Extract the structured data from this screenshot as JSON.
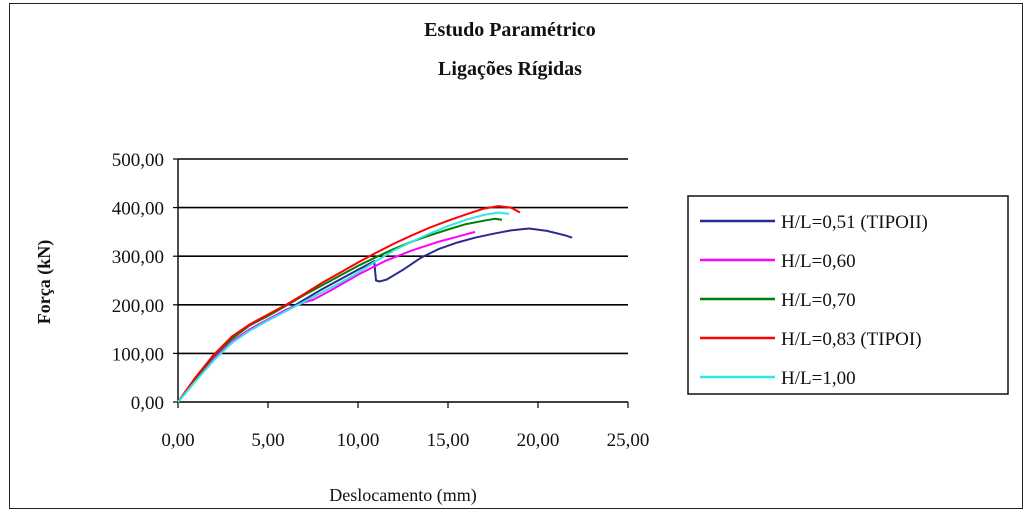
{
  "chart_data": {
    "type": "line",
    "title": "Estudo Paramétrico",
    "subtitle": "Ligações Rígidas",
    "xlabel": "Deslocamento (mm)",
    "ylabel": "Força (kN)",
    "xlim": [
      0,
      25
    ],
    "ylim": [
      0,
      500
    ],
    "x_ticks": [
      "0,00",
      "5,00",
      "10,00",
      "15,00",
      "20,00",
      "25,00"
    ],
    "y_ticks": [
      "0,00",
      "100,00",
      "200,00",
      "300,00",
      "400,00",
      "500,00"
    ],
    "grid": "horizontal",
    "legend_position": "right",
    "series": [
      {
        "name": "H/L=0,51 (TIPOII)",
        "color": "#2b2b8f",
        "points": [
          [
            0,
            0
          ],
          [
            1,
            45
          ],
          [
            2,
            88
          ],
          [
            3,
            122
          ],
          [
            4,
            148
          ],
          [
            5,
            168
          ],
          [
            6,
            188
          ],
          [
            7,
            210
          ],
          [
            8,
            232
          ],
          [
            9,
            252
          ],
          [
            10,
            272
          ],
          [
            10.9,
            290
          ],
          [
            11,
            250
          ],
          [
            11.2,
            248
          ],
          [
            11.6,
            252
          ],
          [
            12.5,
            272
          ],
          [
            13.5,
            297
          ],
          [
            14.5,
            315
          ],
          [
            15.5,
            328
          ],
          [
            16.5,
            338
          ],
          [
            17.5,
            346
          ],
          [
            18.5,
            353
          ],
          [
            19.5,
            357
          ],
          [
            20.5,
            352
          ],
          [
            21.5,
            343
          ],
          [
            21.9,
            338
          ]
        ]
      },
      {
        "name": "H/L=0,60",
        "color": "#ff00ff",
        "points": [
          [
            0,
            0
          ],
          [
            1,
            46
          ],
          [
            2,
            90
          ],
          [
            3,
            125
          ],
          [
            4,
            150
          ],
          [
            5,
            170
          ],
          [
            6,
            190
          ],
          [
            7,
            205
          ],
          [
            7.5,
            210
          ],
          [
            8.5,
            230
          ],
          [
            10,
            262
          ],
          [
            11.5,
            290
          ],
          [
            13,
            312
          ],
          [
            14.5,
            330
          ],
          [
            15.5,
            340
          ],
          [
            16.5,
            350
          ]
        ]
      },
      {
        "name": "H/L=0,70",
        "color": "#008000",
        "points": [
          [
            0,
            0
          ],
          [
            1,
            50
          ],
          [
            2,
            95
          ],
          [
            3,
            130
          ],
          [
            4,
            158
          ],
          [
            5,
            177
          ],
          [
            6,
            198
          ],
          [
            7,
            220
          ],
          [
            8,
            240
          ],
          [
            9,
            260
          ],
          [
            10,
            280
          ],
          [
            11,
            298
          ],
          [
            12,
            315
          ],
          [
            13,
            330
          ],
          [
            14,
            343
          ],
          [
            15,
            355
          ],
          [
            16,
            366
          ],
          [
            17,
            373
          ],
          [
            17.6,
            377
          ],
          [
            18,
            375
          ]
        ]
      },
      {
        "name": "H/L=0,83 (TIPOI)",
        "color": "#ff0000",
        "points": [
          [
            0,
            0
          ],
          [
            1,
            52
          ],
          [
            2,
            98
          ],
          [
            3,
            135
          ],
          [
            4,
            160
          ],
          [
            5,
            180
          ],
          [
            6,
            200
          ],
          [
            7,
            222
          ],
          [
            8,
            245
          ],
          [
            9,
            266
          ],
          [
            10,
            287
          ],
          [
            11,
            307
          ],
          [
            12,
            326
          ],
          [
            13,
            343
          ],
          [
            14,
            359
          ],
          [
            15,
            373
          ],
          [
            16,
            386
          ],
          [
            17,
            398
          ],
          [
            17.8,
            403
          ],
          [
            18.5,
            400
          ],
          [
            19,
            390
          ]
        ]
      },
      {
        "name": "H/L=1,00",
        "color": "#33e6e6",
        "points": [
          [
            0,
            0
          ],
          [
            1,
            44
          ],
          [
            2,
            86
          ],
          [
            3,
            122
          ],
          [
            4,
            147
          ],
          [
            5,
            168
          ],
          [
            6,
            187
          ],
          [
            7,
            206
          ],
          [
            8,
            226
          ],
          [
            9,
            245
          ],
          [
            10,
            266
          ],
          [
            11,
            290
          ],
          [
            12,
            312
          ],
          [
            13,
            330
          ],
          [
            14,
            347
          ],
          [
            15,
            362
          ],
          [
            16,
            375
          ],
          [
            17,
            385
          ],
          [
            17.8,
            390
          ],
          [
            18.4,
            387
          ]
        ]
      }
    ]
  }
}
